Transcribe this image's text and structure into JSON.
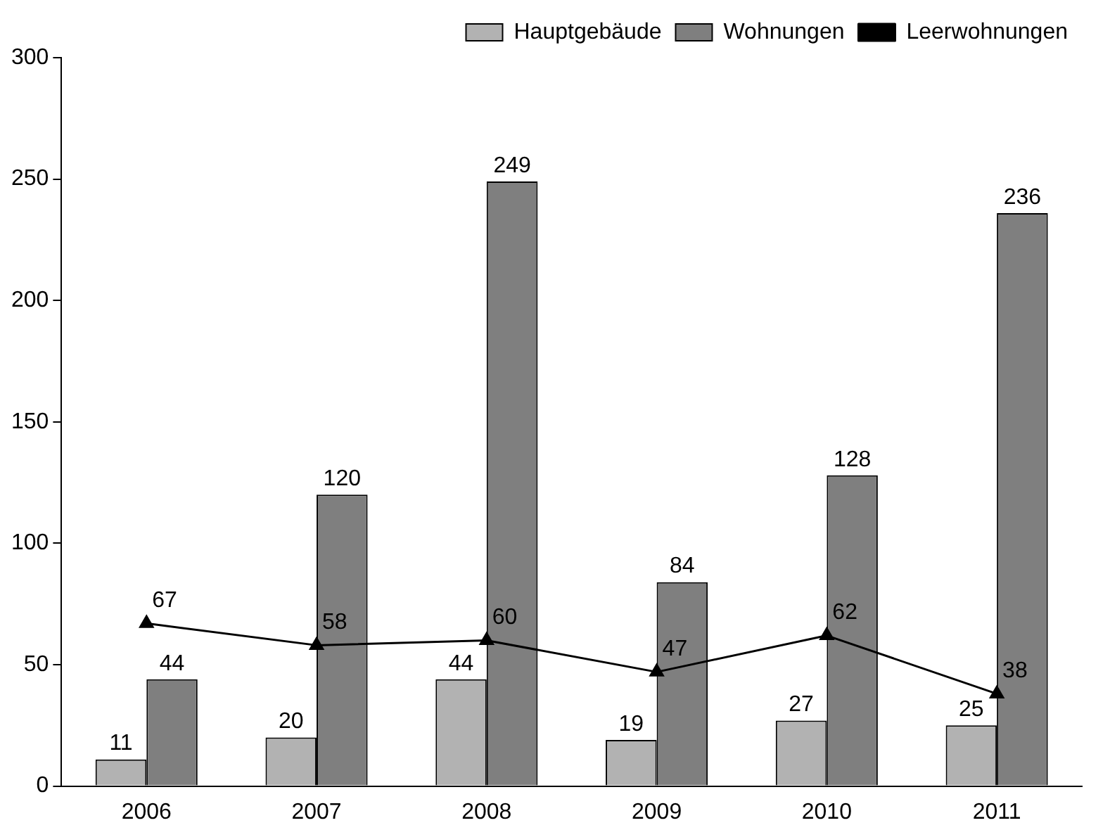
{
  "chart_data": {
    "type": "bar",
    "categories": [
      "2006",
      "2007",
      "2008",
      "2009",
      "2010",
      "2011"
    ],
    "series": [
      {
        "name": "Hauptgebäude",
        "color": "#b2b2b2",
        "values": [
          11,
          20,
          44,
          19,
          27,
          25
        ]
      },
      {
        "name": "Wohnungen",
        "color": "#7f7f7f",
        "values": [
          44,
          120,
          249,
          84,
          128,
          236
        ]
      },
      {
        "name": "Leerwohnungen",
        "type": "line",
        "color": "#000000",
        "values": [
          67,
          58,
          60,
          47,
          62,
          38
        ]
      }
    ],
    "ylim": [
      0,
      300
    ],
    "yticks": [
      0,
      50,
      100,
      150,
      200,
      250,
      300
    ],
    "grid": false,
    "legend": "top right",
    "marker": "triangle",
    "data_labels": true
  }
}
